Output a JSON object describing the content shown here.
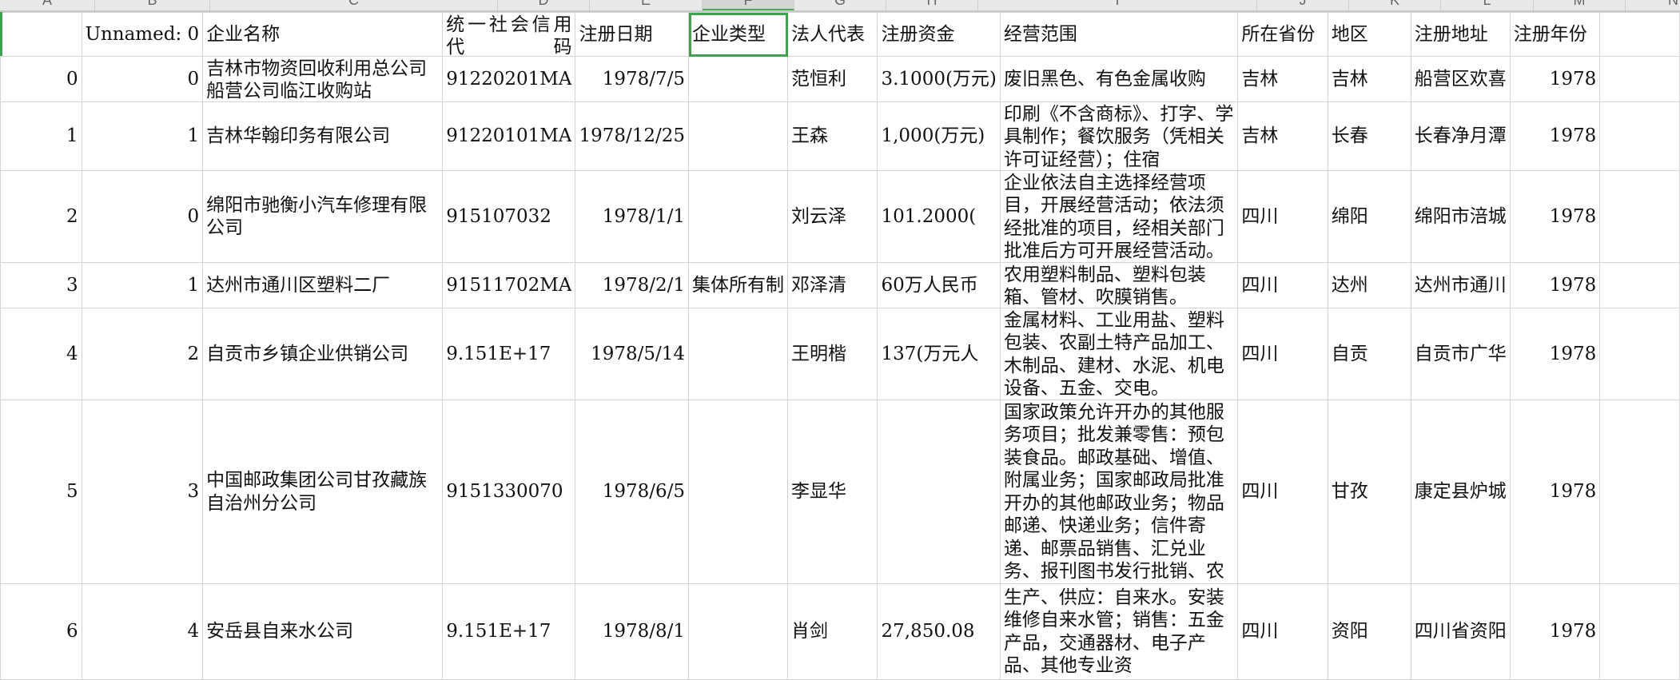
{
  "column_letters": [
    "A",
    "B",
    "C",
    "D",
    "E",
    "F",
    "G",
    "H",
    "I",
    "J",
    "K",
    "L",
    "M",
    "N"
  ],
  "selected_column": "F",
  "headers": [
    "",
    "Unnamed: 0",
    "企业名称",
    "统一社会信用代码",
    "注册日期",
    "企业类型",
    "法人代表",
    "注册资金",
    "经营范围",
    "所在省份",
    "地区",
    "注册地址",
    "注册年份",
    ""
  ],
  "rows": [
    [
      "0",
      "0",
      "吉林市物资回收利用总公司船营公司临江收购站",
      "91220201MA",
      "1978/7/5",
      "",
      "范恒利",
      "3.1000(万元)",
      "废旧黑色、有色金属收购",
      "吉林",
      "吉林",
      "船营区欢喜",
      "1978",
      ""
    ],
    [
      "1",
      "1",
      "吉林华翰印务有限公司",
      "91220101MA",
      "1978/12/25",
      "",
      "王森",
      "1,000(万元)",
      "印刷《不含商标》、打字、学具制作；餐饮服务（凭相关许可证经营）；住宿",
      "吉林",
      "长春",
      "长春净月潭",
      "1978",
      ""
    ],
    [
      "2",
      "0",
      "绵阳市驰衡小汽车修理有限公司",
      "915107032",
      "1978/1/1",
      "",
      "刘云泽",
      "101.2000(",
      "企业依法自主选择经营项目，开展经营活动；依法须经批准的项目，经相关部门批准后方可开展经营活动。",
      "四川",
      "绵阳",
      "绵阳市涪城",
      "1978",
      ""
    ],
    [
      "3",
      "1",
      "达州市通川区塑料二厂",
      "91511702MA",
      "1978/2/1",
      "集体所有制",
      "邓泽清",
      "60万人民币",
      "农用塑料制品、塑料包装箱、管材、吹膜销售。",
      "四川",
      "达州",
      "达州市通川",
      "1978",
      ""
    ],
    [
      "4",
      "2",
      "自贡市乡镇企业供销公司",
      "9.151E+17",
      "1978/5/14",
      "",
      "王明楷",
      "137(万元人",
      "金属材料、工业用盐、塑料包装、农副土特产品加工、木制品、建材、水泥、机电设备、五金、交电。",
      "四川",
      "自贡",
      "自贡市广华",
      "1978",
      ""
    ],
    [
      "5",
      "3",
      "中国邮政集团公司甘孜藏族自治州分公司",
      "9151330070",
      "1978/6/5",
      "",
      "李显华",
      "",
      "国家政策允许开办的其他服务项目；批发兼零售：预包装食品。邮政基础、增值、附属业务；国家邮政局批准开办的其他邮政业务；物品邮递、快递业务；信件寄递、邮票品销售、汇兑业务、报刊图书发行批销、农业物资配送业务、广告函件",
      "四川",
      "甘孜",
      "康定县炉城",
      "1978",
      ""
    ],
    [
      "6",
      "4",
      "安岳县自来水公司",
      "9.151E+17",
      "1978/8/1",
      "",
      "肖剑",
      "27,850.08",
      "生产、供应：自来水。安装维修自来水管；销售：五金产品，交通器材、电子产品、其他专业资",
      "四川",
      "资阳",
      "四川省资阳",
      "1978",
      ""
    ]
  ]
}
